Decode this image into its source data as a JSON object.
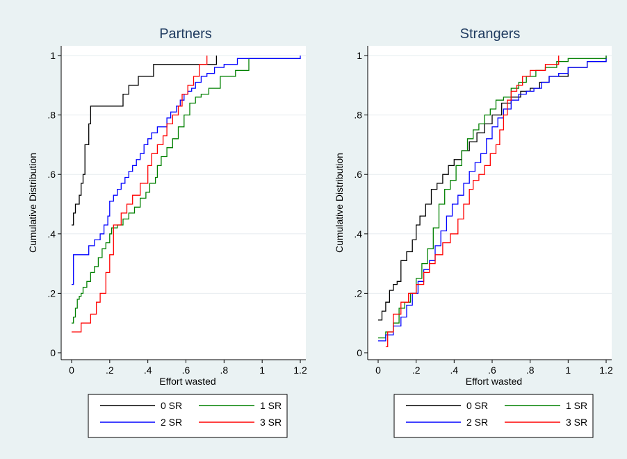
{
  "chart_data": [
    {
      "type": "line",
      "step": true,
      "title": "Partners",
      "xlabel": "Effort wasted",
      "ylabel": "Cumulative Distribution",
      "xlim": [
        0,
        1.2
      ],
      "ylim": [
        0,
        1
      ],
      "xticks": [
        "0",
        ".2",
        ".4",
        ".6",
        ".8",
        "1",
        "1.2"
      ],
      "yticks": [
        "0",
        ".2",
        ".4",
        ".6",
        ".8",
        "1"
      ],
      "grid": true,
      "legend_position": "bottom",
      "series": [
        {
          "name": "0 SR",
          "color": "#000000",
          "x": [
            0,
            0.01,
            0.02,
            0.04,
            0.05,
            0.06,
            0.07,
            0.09,
            0.1,
            0.2,
            0.27,
            0.3,
            0.35,
            0.43,
            0.73,
            0.76
          ],
          "y": [
            0.43,
            0.47,
            0.5,
            0.53,
            0.57,
            0.6,
            0.7,
            0.77,
            0.83,
            0.83,
            0.87,
            0.9,
            0.93,
            0.97,
            0.97,
            1.0
          ]
        },
        {
          "name": "1 SR",
          "color": "#008000",
          "x": [
            0,
            0.01,
            0.02,
            0.03,
            0.04,
            0.05,
            0.06,
            0.08,
            0.1,
            0.12,
            0.14,
            0.16,
            0.18,
            0.2,
            0.21,
            0.24,
            0.27,
            0.3,
            0.33,
            0.36,
            0.39,
            0.41,
            0.44,
            0.45,
            0.47,
            0.5,
            0.53,
            0.56,
            0.59,
            0.62,
            0.65,
            0.68,
            0.72,
            0.78,
            0.86,
            0.93,
            1.2
          ],
          "y": [
            0.1,
            0.12,
            0.15,
            0.18,
            0.19,
            0.2,
            0.22,
            0.24,
            0.27,
            0.29,
            0.32,
            0.35,
            0.37,
            0.4,
            0.42,
            0.43,
            0.45,
            0.47,
            0.49,
            0.52,
            0.54,
            0.57,
            0.59,
            0.63,
            0.66,
            0.69,
            0.72,
            0.76,
            0.8,
            0.84,
            0.86,
            0.87,
            0.89,
            0.93,
            0.95,
            0.99,
            0.99
          ]
        },
        {
          "name": "2 SR",
          "color": "#0000ff",
          "x": [
            0,
            0.01,
            0.05,
            0.09,
            0.12,
            0.15,
            0.17,
            0.19,
            0.2,
            0.22,
            0.24,
            0.26,
            0.28,
            0.3,
            0.32,
            0.34,
            0.36,
            0.38,
            0.4,
            0.42,
            0.45,
            0.48,
            0.5,
            0.52,
            0.55,
            0.57,
            0.59,
            0.61,
            0.63,
            0.65,
            0.68,
            0.71,
            0.75,
            0.8,
            0.87,
            1.0,
            1.2
          ],
          "y": [
            0.23,
            0.33,
            0.33,
            0.36,
            0.38,
            0.4,
            0.43,
            0.46,
            0.51,
            0.53,
            0.55,
            0.57,
            0.59,
            0.61,
            0.63,
            0.65,
            0.67,
            0.7,
            0.72,
            0.74,
            0.76,
            0.76,
            0.79,
            0.81,
            0.83,
            0.85,
            0.87,
            0.88,
            0.89,
            0.91,
            0.93,
            0.94,
            0.96,
            0.97,
            0.99,
            0.99,
            1.0
          ]
        },
        {
          "name": "3 SR",
          "color": "#ff0000",
          "x": [
            0,
            0.02,
            0.05,
            0.1,
            0.13,
            0.15,
            0.18,
            0.2,
            0.22,
            0.26,
            0.29,
            0.32,
            0.36,
            0.4,
            0.42,
            0.45,
            0.48,
            0.5,
            0.53,
            0.56,
            0.58,
            0.61,
            0.64,
            0.67,
            0.7,
            0.71
          ],
          "y": [
            0.07,
            0.07,
            0.1,
            0.13,
            0.17,
            0.2,
            0.27,
            0.33,
            0.43,
            0.47,
            0.5,
            0.53,
            0.57,
            0.63,
            0.67,
            0.7,
            0.73,
            0.77,
            0.8,
            0.83,
            0.87,
            0.9,
            0.93,
            0.97,
            0.97,
            1.0
          ]
        }
      ]
    },
    {
      "type": "line",
      "step": true,
      "title": "Strangers",
      "xlabel": "Effort wasted",
      "ylabel": "Cumulative Distribution",
      "xlim": [
        0,
        1.2
      ],
      "ylim": [
        0,
        1
      ],
      "xticks": [
        "0",
        ".2",
        ".4",
        ".6",
        ".8",
        "1",
        "1.2"
      ],
      "yticks": [
        "0",
        ".2",
        ".4",
        ".6",
        ".8",
        "1"
      ],
      "grid": true,
      "legend_position": "bottom",
      "series": [
        {
          "name": "0 SR",
          "color": "#000000",
          "x": [
            0,
            0.02,
            0.04,
            0.06,
            0.08,
            0.1,
            0.12,
            0.15,
            0.18,
            0.2,
            0.22,
            0.25,
            0.28,
            0.31,
            0.34,
            0.37,
            0.4,
            0.44,
            0.48,
            0.52,
            0.56,
            0.6,
            0.65,
            0.7,
            0.75,
            0.8,
            0.85,
            0.9,
            1.0,
            1.1,
            1.2
          ],
          "y": [
            0.11,
            0.14,
            0.17,
            0.21,
            0.23,
            0.24,
            0.31,
            0.34,
            0.38,
            0.43,
            0.46,
            0.5,
            0.55,
            0.57,
            0.6,
            0.63,
            0.65,
            0.68,
            0.71,
            0.74,
            0.77,
            0.8,
            0.84,
            0.86,
            0.88,
            0.89,
            0.91,
            0.93,
            0.96,
            0.98,
            1.0
          ]
        },
        {
          "name": "1 SR",
          "color": "#008000",
          "x": [
            0,
            0.04,
            0.08,
            0.11,
            0.14,
            0.17,
            0.2,
            0.23,
            0.26,
            0.29,
            0.32,
            0.35,
            0.38,
            0.41,
            0.44,
            0.47,
            0.5,
            0.53,
            0.56,
            0.59,
            0.62,
            0.66,
            0.7,
            0.74,
            0.78,
            0.83,
            0.88,
            0.94,
            1.0,
            1.1,
            1.2
          ],
          "y": [
            0.05,
            0.07,
            0.1,
            0.15,
            0.17,
            0.2,
            0.25,
            0.3,
            0.35,
            0.42,
            0.5,
            0.55,
            0.58,
            0.63,
            0.68,
            0.72,
            0.75,
            0.77,
            0.8,
            0.82,
            0.85,
            0.86,
            0.89,
            0.91,
            0.93,
            0.95,
            0.96,
            0.98,
            0.99,
            0.99,
            1.0
          ]
        },
        {
          "name": "2 SR",
          "color": "#0000ff",
          "x": [
            0,
            0.04,
            0.08,
            0.12,
            0.15,
            0.18,
            0.21,
            0.24,
            0.27,
            0.3,
            0.33,
            0.36,
            0.39,
            0.42,
            0.45,
            0.48,
            0.51,
            0.54,
            0.57,
            0.6,
            0.63,
            0.66,
            0.7,
            0.74,
            0.78,
            0.82,
            0.86,
            0.9,
            0.95,
            1.0,
            1.1,
            1.2
          ],
          "y": [
            0.04,
            0.06,
            0.09,
            0.12,
            0.16,
            0.2,
            0.24,
            0.28,
            0.31,
            0.36,
            0.41,
            0.46,
            0.5,
            0.53,
            0.57,
            0.61,
            0.64,
            0.67,
            0.72,
            0.76,
            0.79,
            0.82,
            0.85,
            0.87,
            0.88,
            0.89,
            0.91,
            0.93,
            0.94,
            0.96,
            0.98,
            0.99
          ]
        },
        {
          "name": "3 SR",
          "color": "#ff0000",
          "x": [
            0.04,
            0.05,
            0.08,
            0.12,
            0.16,
            0.2,
            0.24,
            0.27,
            0.3,
            0.34,
            0.38,
            0.42,
            0.45,
            0.48,
            0.5,
            0.53,
            0.56,
            0.59,
            0.62,
            0.64,
            0.66,
            0.68,
            0.7,
            0.73,
            0.76,
            0.8,
            0.84,
            0.88,
            0.92,
            0.95
          ],
          "y": [
            0.02,
            0.07,
            0.13,
            0.17,
            0.2,
            0.23,
            0.27,
            0.3,
            0.33,
            0.37,
            0.4,
            0.45,
            0.5,
            0.55,
            0.58,
            0.6,
            0.63,
            0.67,
            0.7,
            0.75,
            0.8,
            0.85,
            0.88,
            0.9,
            0.93,
            0.95,
            0.95,
            0.97,
            0.97,
            1.0
          ]
        }
      ]
    }
  ]
}
